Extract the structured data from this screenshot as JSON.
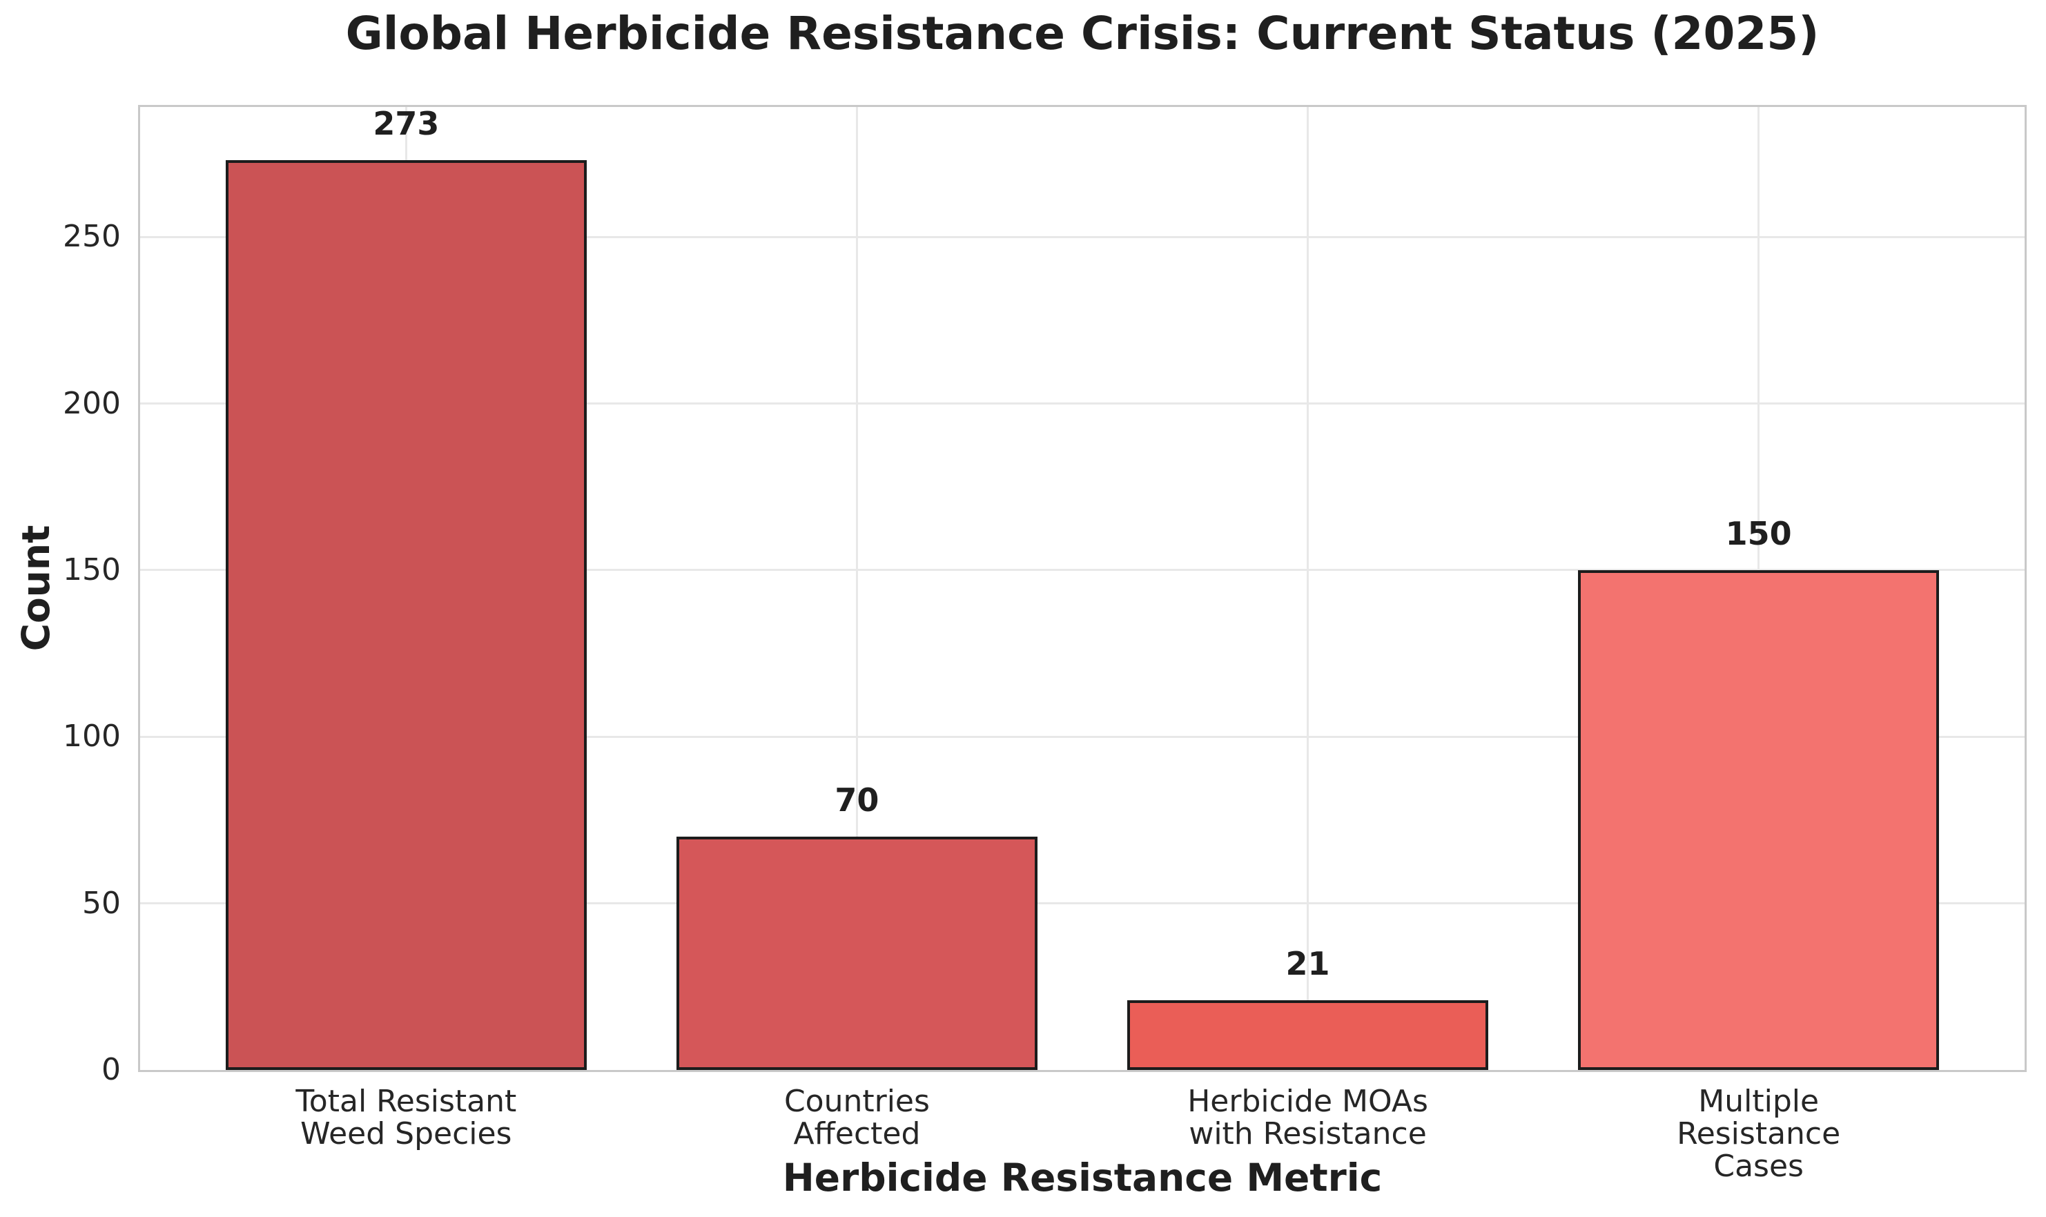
{
  "chart_data": {
    "type": "bar",
    "title": "Global Herbicide Resistance Crisis: Current Status (2025)",
    "xlabel": "Herbicide Resistance Metric",
    "ylabel": "Count",
    "categories": [
      "Total Resistant\nWeed Species",
      "Countries\nAffected",
      "Herbicide MOAs\nwith Resistance",
      "Multiple Resistance\nCases"
    ],
    "values": [
      273,
      70,
      21,
      150
    ],
    "data_labels": [
      "273",
      "70",
      "21",
      "150"
    ],
    "bar_colors": [
      "#cb5355",
      "#d55759",
      "#ea5e57",
      "#f3736f"
    ],
    "bar_edge_color": "#1c1c1c",
    "yticks": [
      0,
      50,
      100,
      150,
      200,
      250
    ],
    "ylim": [
      0,
      289
    ],
    "xlim": [
      -0.59,
      3.59
    ],
    "bar_width_units": 0.8,
    "grid": true,
    "legend": null,
    "background_color": "#ffffff",
    "grid_color": "#e8e8e8",
    "spine_color": "#c9c9c9",
    "text_color": "#1f1f1f"
  }
}
